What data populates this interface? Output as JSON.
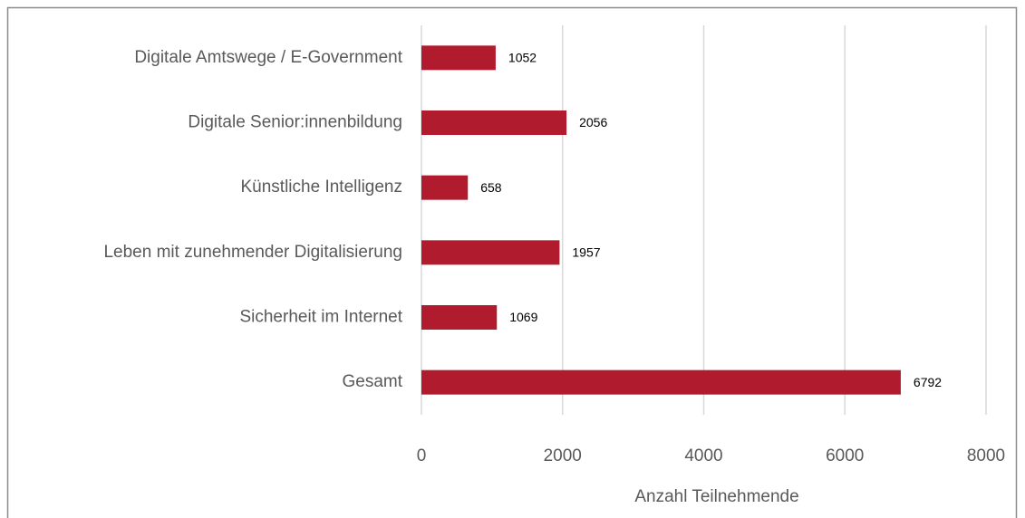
{
  "chart_data": {
    "type": "bar",
    "orientation": "horizontal",
    "xlabel": "Anzahl Teilnehmende",
    "categories": [
      "Digitale Amtswege / E-Government",
      "Digitale Senior:innenbildung",
      "Künstliche Intelligenz",
      "Leben mit zunehmender Digitalisierung",
      "Sicherheit im Internet",
      "Gesamt"
    ],
    "values": [
      1052,
      2056,
      658,
      1957,
      1069,
      6792
    ],
    "color": "#b01c2e",
    "xlim": [
      0,
      8000
    ],
    "xticks": [
      0,
      2000,
      4000,
      6000,
      8000
    ],
    "grid": true
  }
}
